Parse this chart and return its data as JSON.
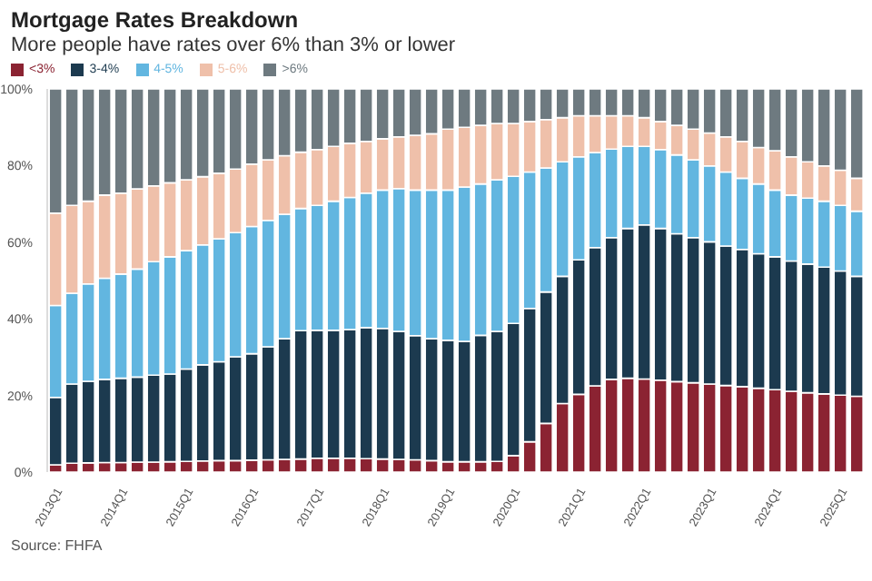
{
  "chart_data": {
    "type": "bar",
    "title": "Mortgage Rates Breakdown",
    "subtitle": "More people have rates over 6% than 3% or lower",
    "categories": [
      "2013Q1",
      null,
      null,
      null,
      "2014Q1",
      null,
      null,
      null,
      "2015Q1",
      null,
      null,
      null,
      "2016Q1",
      null,
      null,
      null,
      "2017Q1",
      null,
      null,
      null,
      "2018Q1",
      null,
      null,
      null,
      "2019Q1",
      null,
      null,
      null,
      "2020Q1",
      null,
      null,
      null,
      "2021Q1",
      null,
      null,
      null,
      "2022Q1",
      null,
      null,
      null,
      "2023Q1",
      null,
      null,
      null,
      "2024Q1",
      null,
      null,
      null,
      "2025Q1",
      null
    ],
    "stacked": true,
    "series": [
      {
        "name": "<3%",
        "color": "#8b2332",
        "values": [
          1.9,
          2.3,
          2.4,
          2.5,
          2.5,
          2.6,
          2.6,
          2.7,
          2.8,
          2.9,
          3.0,
          3.0,
          3.1,
          3.2,
          3.3,
          3.4,
          3.6,
          3.6,
          3.6,
          3.5,
          3.4,
          3.3,
          3.2,
          3.0,
          2.7,
          2.7,
          2.7,
          2.8,
          4.3,
          7.9,
          12.7,
          17.9,
          20.3,
          22.5,
          24.2,
          24.5,
          24.3,
          24.0,
          23.6,
          23.3,
          23.0,
          22.6,
          22.3,
          21.9,
          21.5,
          21.1,
          20.7,
          20.4,
          20.1,
          19.8
        ]
      },
      {
        "name": "3-4%",
        "color": "#1c3a4f",
        "values": [
          17.6,
          20.7,
          21.3,
          21.7,
          22.0,
          22.2,
          22.7,
          22.9,
          24.1,
          25.1,
          25.8,
          27.1,
          27.8,
          29.5,
          31.5,
          33.5,
          33.4,
          33.4,
          33.6,
          34.2,
          34.1,
          33.4,
          32.4,
          31.8,
          31.7,
          31.4,
          33.0,
          33.9,
          34.5,
          34.8,
          34.3,
          33.2,
          35.1,
          36.1,
          37.0,
          39.1,
          40.2,
          39.6,
          38.6,
          37.9,
          37.1,
          36.4,
          35.8,
          35.1,
          34.7,
          34.0,
          33.6,
          33.1,
          32.4,
          31.3
        ]
      },
      {
        "name": "4-5%",
        "color": "#62b6e0",
        "values": [
          24.0,
          23.7,
          25.4,
          26.4,
          27.2,
          28.2,
          29.6,
          30.6,
          30.9,
          31.3,
          32.1,
          32.4,
          33.2,
          33.0,
          32.5,
          31.9,
          32.6,
          33.7,
          34.5,
          35.1,
          36.1,
          37.3,
          38.0,
          38.8,
          39.2,
          40.3,
          39.5,
          39.6,
          38.4,
          35.6,
          32.4,
          29.9,
          26.9,
          24.8,
          23.1,
          21.4,
          20.5,
          20.6,
          20.6,
          20.3,
          19.8,
          19.3,
          18.6,
          18.2,
          17.4,
          17.2,
          17.2,
          17.2,
          17.1,
          17.0
        ]
      },
      {
        "name": "5-6%",
        "color": "#efc0aa",
        "values": [
          24.1,
          22.9,
          21.6,
          21.7,
          21.1,
          20.9,
          19.8,
          19.3,
          18.5,
          17.8,
          17.1,
          16.6,
          16.3,
          15.8,
          15.3,
          14.7,
          14.6,
          14.3,
          14.1,
          13.5,
          13.4,
          13.5,
          14.3,
          14.7,
          15.9,
          15.6,
          15.3,
          14.7,
          13.8,
          13.2,
          12.6,
          11.5,
          10.7,
          9.6,
          8.7,
          8.0,
          7.5,
          7.3,
          7.7,
          8.0,
          8.6,
          9.2,
          9.6,
          9.5,
          10.3,
          10.0,
          9.5,
          9.2,
          9.2,
          8.6
        ]
      },
      {
        "name": ">6%",
        "color": "#6e7a80",
        "values": [
          32.4,
          30.4,
          29.3,
          27.7,
          27.2,
          26.1,
          25.3,
          24.5,
          23.7,
          22.9,
          22.0,
          20.9,
          19.6,
          18.5,
          17.4,
          16.5,
          15.8,
          15.0,
          14.2,
          13.7,
          13.0,
          12.5,
          12.1,
          11.7,
          10.5,
          10.0,
          9.5,
          9.0,
          9.0,
          8.5,
          8.0,
          7.5,
          7.0,
          7.0,
          7.0,
          7.0,
          7.5,
          8.5,
          9.5,
          10.5,
          11.5,
          12.5,
          13.7,
          15.3,
          16.1,
          17.7,
          19.0,
          20.1,
          21.2,
          23.3
        ]
      }
    ],
    "ylim": [
      0,
      100
    ],
    "yticks": [
      {
        "value": 0,
        "label": "0%"
      },
      {
        "value": 20,
        "label": "20%"
      },
      {
        "value": 40,
        "label": "40%"
      },
      {
        "value": 60,
        "label": "60%"
      },
      {
        "value": 80,
        "label": "80%"
      },
      {
        "value": 100,
        "label": "100%"
      }
    ],
    "legend": "top left",
    "annotations": [
      "Source: FHFA"
    ]
  }
}
